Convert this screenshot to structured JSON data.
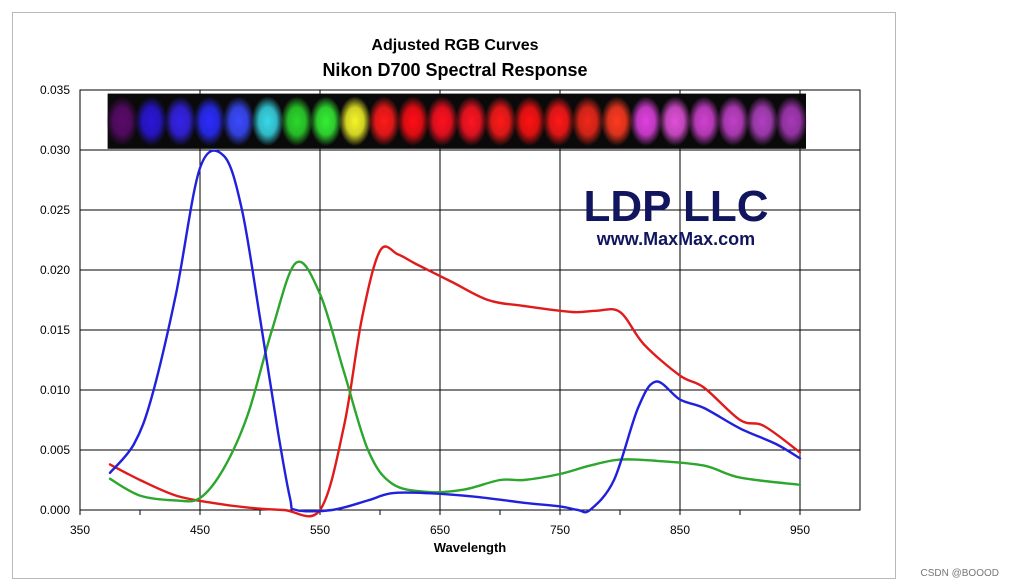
{
  "credit": "CSDN @BOOOD",
  "chart_data": {
    "type": "line",
    "title": "Adjusted RGB Curves",
    "subtitle": "Nikon D700 Spectral Response",
    "xlabel": "Wavelength",
    "ylabel": "",
    "xlim": [
      350,
      1000
    ],
    "ylim": [
      0,
      0.035
    ],
    "xticks": [
      350,
      450,
      550,
      650,
      750,
      850,
      950
    ],
    "yticks": [
      "0.000",
      "0.005",
      "0.010",
      "0.015",
      "0.020",
      "0.025",
      "0.030",
      "0.035"
    ],
    "grid": true,
    "legend": "none",
    "watermark": {
      "line1": "LDP LLC",
      "line2": "www.MaxMax.com",
      "color": "#11155e"
    },
    "spectrum_strip": {
      "colors": [
        "#5a0a6a",
        "#2a16d8",
        "#3522e8",
        "#2a2cff",
        "#3a4aff",
        "#38d8e8",
        "#2cd82c",
        "#34ee34",
        "#f4f428",
        "#ff1a1a",
        "#ff0d14",
        "#ff1020",
        "#ff1422",
        "#ff1a1a",
        "#ff1212",
        "#ff1818",
        "#f0281a",
        "#ff3a20",
        "#e040e0",
        "#e050d8",
        "#d040d0",
        "#c040c8",
        "#b040c0",
        "#a838b8"
      ]
    },
    "series": [
      {
        "color": "#e01b1b",
        "x": [
          375,
          400,
          430,
          460,
          490,
          520,
          550,
          570,
          585,
          600,
          615,
          630,
          660,
          690,
          720,
          760,
          780,
          800,
          820,
          850,
          870,
          900,
          920,
          950
        ],
        "y": [
          0.0038,
          0.0025,
          0.0012,
          0.0006,
          0.0002,
          0.0,
          0.0,
          0.007,
          0.016,
          0.0216,
          0.0213,
          0.0205,
          0.019,
          0.0175,
          0.017,
          0.0165,
          0.0166,
          0.0165,
          0.0138,
          0.0112,
          0.0102,
          0.0075,
          0.007,
          0.0048
        ]
      },
      {
        "color": "#2da62d",
        "x": [
          375,
          400,
          430,
          450,
          470,
          490,
          510,
          530,
          550,
          570,
          590,
          610,
          640,
          670,
          700,
          720,
          750,
          775,
          800,
          830,
          870,
          900,
          950
        ],
        "y": [
          0.0026,
          0.0012,
          0.0008,
          0.001,
          0.0035,
          0.008,
          0.015,
          0.0206,
          0.018,
          0.0115,
          0.005,
          0.0022,
          0.0015,
          0.0017,
          0.0025,
          0.0025,
          0.003,
          0.0037,
          0.0042,
          0.0041,
          0.0037,
          0.0027,
          0.0021
        ]
      },
      {
        "color": "#2020dd",
        "x": [
          375,
          395,
          410,
          430,
          450,
          470,
          485,
          500,
          515,
          525,
          530,
          560,
          590,
          610,
          640,
          680,
          720,
          750,
          765,
          775,
          795,
          815,
          830,
          850,
          870,
          900,
          930,
          950
        ],
        "y": [
          0.0031,
          0.0055,
          0.0095,
          0.018,
          0.0285,
          0.0295,
          0.025,
          0.016,
          0.0065,
          0.001,
          0.0,
          0.0,
          0.0008,
          0.0014,
          0.0014,
          0.0011,
          0.0006,
          0.0003,
          0.0,
          0.0,
          0.0025,
          0.0085,
          0.0107,
          0.0092,
          0.0085,
          0.0068,
          0.0055,
          0.0043
        ]
      }
    ]
  }
}
